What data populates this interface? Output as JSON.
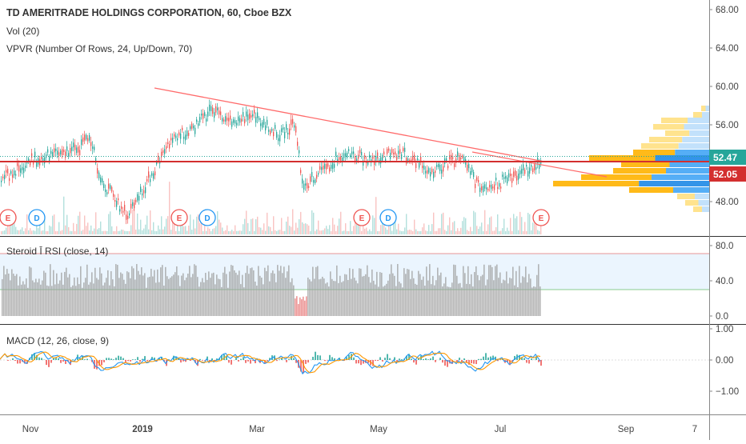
{
  "chart": {
    "title": "TD AMERITRADE HOLDINGS CORPORATION, 60, Cboe BZX",
    "vol_label": "Vol (20)",
    "vpvr_label": "VPVR (Number Of Rows, 24, Up/Down, 70)",
    "rsi_label": "Steroid Ī RSI (close, 14)",
    "macd_label": "MACD (12, 26, close, 9)",
    "price_axis": [
      "68.00",
      "64.00",
      "60.00",
      "56.00",
      "48.00"
    ],
    "rsi_axis": [
      "80.0",
      "40.0",
      "0.0"
    ],
    "macd_axis": [
      "1.00",
      "0.00",
      "−1.00"
    ],
    "x_axis": [
      "Nov",
      "2019",
      "Mar",
      "May",
      "Jul",
      "Sep",
      "7"
    ],
    "last_price_tag": "52.47",
    "level_tag": "52.05",
    "earnings_badge": "E",
    "dividend_badge": "D",
    "colors": {
      "up": "#26a69a",
      "down": "#ef5350",
      "trend": "#ff6b6b",
      "level": "#d32f2f",
      "last": "#26a69a",
      "rsi": "#9e9e9e",
      "macd": "#2196f3",
      "signal": "#ff9800"
    }
  }
}
